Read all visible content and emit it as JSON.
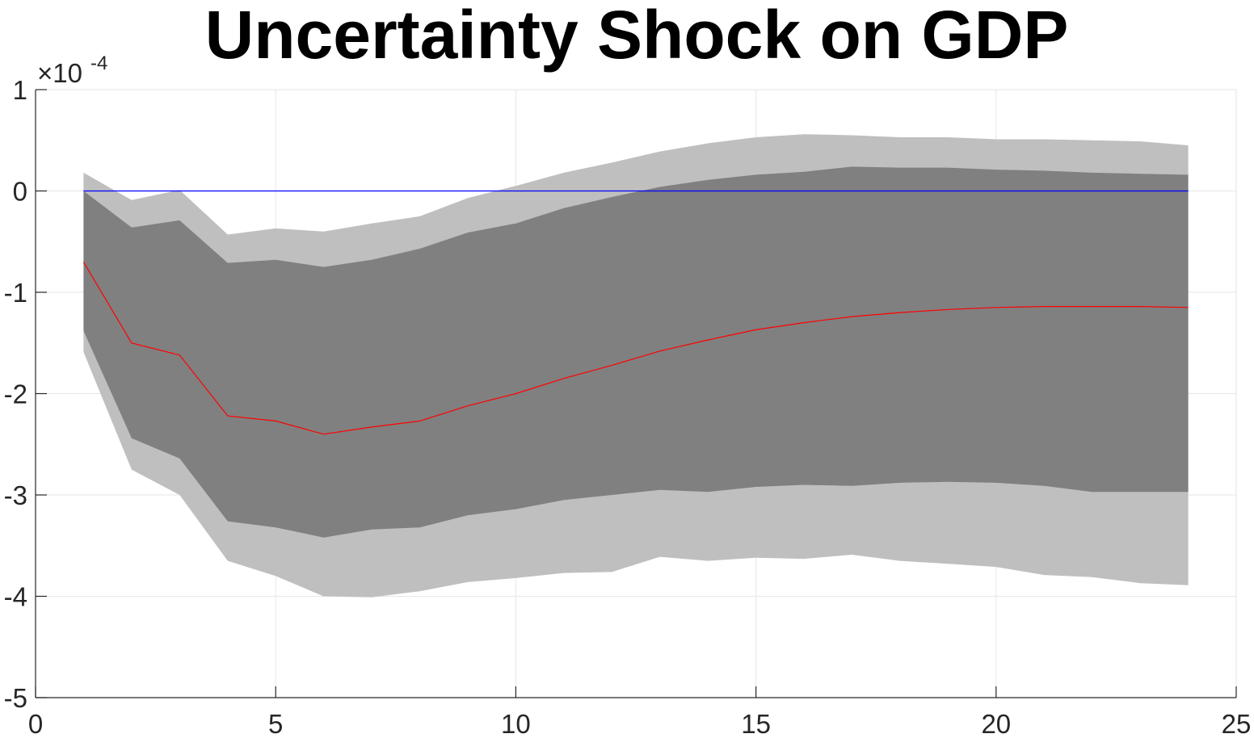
{
  "chart_data": {
    "type": "area",
    "title": "Uncertainty Shock on GDP",
    "xlabel": "",
    "ylabel": "",
    "exponent_label": {
      "base": "×10",
      "power": "-4"
    },
    "xlim": [
      0,
      25
    ],
    "ylim": [
      -5,
      1
    ],
    "xticks": [
      0,
      5,
      10,
      15,
      20,
      25
    ],
    "yticks": [
      -5,
      -4,
      -3,
      -2,
      -1,
      0,
      1
    ],
    "grid": true,
    "legend": "none",
    "x": [
      1,
      2,
      3,
      4,
      5,
      6,
      7,
      8,
      9,
      10,
      11,
      12,
      13,
      14,
      15,
      16,
      17,
      18,
      19,
      20,
      21,
      22,
      23,
      24
    ],
    "series": [
      {
        "role": "outer-band",
        "color": "#bfbfbf",
        "upper": [
          0.18,
          -0.09,
          0.01,
          -0.43,
          -0.37,
          -0.4,
          -0.32,
          -0.25,
          -0.07,
          0.05,
          0.18,
          0.28,
          0.39,
          0.47,
          0.53,
          0.56,
          0.55,
          0.53,
          0.53,
          0.51,
          0.51,
          0.5,
          0.49,
          0.45
        ],
        "lower": [
          -1.59,
          -2.75,
          -3.0,
          -3.65,
          -3.8,
          -4.0,
          -4.01,
          -3.95,
          -3.86,
          -3.82,
          -3.77,
          -3.76,
          -3.61,
          -3.65,
          -3.62,
          -3.63,
          -3.59,
          -3.65,
          -3.68,
          -3.71,
          -3.79,
          -3.81,
          -3.87,
          -3.89
        ]
      },
      {
        "role": "inner-band",
        "color": "#808080",
        "upper": [
          0.0,
          -0.36,
          -0.29,
          -0.71,
          -0.68,
          -0.75,
          -0.68,
          -0.57,
          -0.41,
          -0.32,
          -0.17,
          -0.06,
          0.04,
          0.11,
          0.16,
          0.19,
          0.24,
          0.23,
          0.23,
          0.21,
          0.2,
          0.18,
          0.17,
          0.16
        ],
        "lower": [
          -1.38,
          -2.44,
          -2.64,
          -3.26,
          -3.32,
          -3.42,
          -3.34,
          -3.32,
          -3.2,
          -3.14,
          -3.05,
          -3.0,
          -2.95,
          -2.97,
          -2.92,
          -2.9,
          -2.91,
          -2.88,
          -2.87,
          -2.88,
          -2.91,
          -2.97,
          -2.97,
          -2.97
        ]
      },
      {
        "role": "median",
        "color": "#ff0000",
        "values": [
          -0.7,
          -1.5,
          -1.62,
          -2.22,
          -2.27,
          -2.4,
          -2.33,
          -2.27,
          -2.12,
          -2.0,
          -1.85,
          -1.72,
          -1.58,
          -1.47,
          -1.37,
          -1.3,
          -1.24,
          -1.2,
          -1.17,
          -1.15,
          -1.14,
          -1.14,
          -1.14,
          -1.15
        ]
      },
      {
        "role": "zero-line",
        "color": "#0000ff",
        "values": [
          0,
          0,
          0,
          0,
          0,
          0,
          0,
          0,
          0,
          0,
          0,
          0,
          0,
          0,
          0,
          0,
          0,
          0,
          0,
          0,
          0,
          0,
          0,
          0
        ]
      }
    ],
    "colors": {
      "axes": "#262626",
      "grid": "#e6e6e6",
      "background": "#ffffff"
    }
  }
}
